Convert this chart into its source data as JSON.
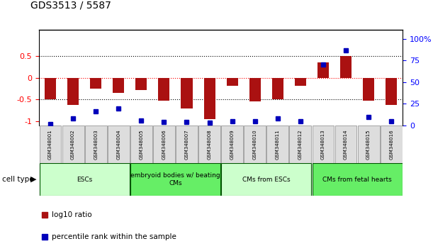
{
  "title": "GDS3513 / 5587",
  "samples": [
    "GSM348001",
    "GSM348002",
    "GSM348003",
    "GSM348004",
    "GSM348005",
    "GSM348006",
    "GSM348007",
    "GSM348008",
    "GSM348009",
    "GSM348010",
    "GSM348011",
    "GSM348012",
    "GSM348013",
    "GSM348014",
    "GSM348015",
    "GSM348016"
  ],
  "log10_ratio": [
    -0.5,
    -0.62,
    -0.25,
    -0.35,
    -0.28,
    -0.52,
    -0.7,
    -0.95,
    -0.18,
    -0.55,
    -0.5,
    -0.18,
    0.35,
    0.5,
    -0.52,
    -0.62
  ],
  "percentile_rank": [
    2,
    8,
    16,
    20,
    6,
    4,
    4,
    3,
    5,
    5,
    8,
    5,
    70,
    87,
    10,
    5
  ],
  "cell_type_groups": [
    {
      "label": "ESCs",
      "start": 0,
      "end": 3,
      "color": "#ccffcc"
    },
    {
      "label": "embryoid bodies w/ beating\nCMs",
      "start": 4,
      "end": 7,
      "color": "#66ee66"
    },
    {
      "label": "CMs from ESCs",
      "start": 8,
      "end": 11,
      "color": "#ccffcc"
    },
    {
      "label": "CMs from fetal hearts",
      "start": 12,
      "end": 15,
      "color": "#66ee66"
    }
  ],
  "bar_color": "#aa1111",
  "dot_color": "#0000bb",
  "ylim_left": [
    -1.1,
    1.1
  ],
  "ylim_right": [
    0,
    110
  ],
  "yticks_left": [
    -1.0,
    -0.5,
    0.0,
    0.5
  ],
  "ytick_labels_left": [
    "-1",
    "-0.5",
    "0",
    "0.5"
  ],
  "yticks_right": [
    0,
    25,
    50,
    75,
    100
  ],
  "ytick_labels_right": [
    "0",
    "25",
    "50",
    "75",
    "100%"
  ]
}
